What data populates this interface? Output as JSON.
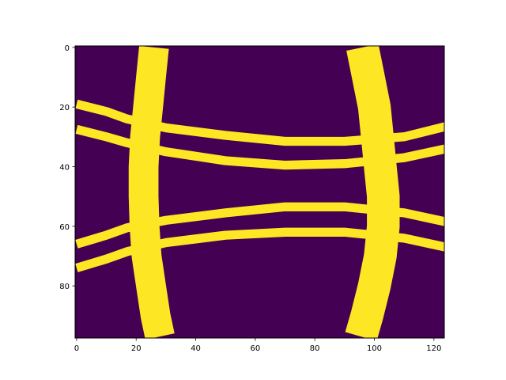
{
  "chart_data": {
    "type": "heatmap",
    "title": "",
    "xlabel": "",
    "ylabel": "",
    "image_shape": [
      98,
      124
    ],
    "xlim": [
      -0.5,
      123.5
    ],
    "ylim": [
      97.5,
      -0.5
    ],
    "x_ticks": [
      0,
      20,
      40,
      60,
      80,
      100,
      120
    ],
    "y_ticks": [
      0,
      20,
      40,
      60,
      80
    ],
    "x_tick_labels": [
      "0",
      "20",
      "40",
      "60",
      "80",
      "100",
      "120"
    ],
    "y_tick_labels": [
      "0",
      "20",
      "40",
      "60",
      "80"
    ],
    "colormap": "viridis",
    "value_range": [
      0,
      1
    ],
    "colors": {
      "background": "#440154",
      "foreground": "#fde725"
    },
    "grid": false,
    "legend": "none",
    "bands": [
      {
        "name": "left vertical band",
        "orientation": "vertical",
        "center_points": [
          [
            26,
            0
          ],
          [
            25,
            10
          ],
          [
            24,
            20
          ],
          [
            23,
            30
          ],
          [
            22.5,
            40
          ],
          [
            22.5,
            50
          ],
          [
            22.8,
            60
          ],
          [
            23.5,
            70
          ],
          [
            25,
            80
          ],
          [
            26.5,
            90
          ],
          [
            28,
            97
          ]
        ],
        "width": 10
      },
      {
        "name": "right vertical band",
        "orientation": "vertical",
        "center_points": [
          [
            96,
            0
          ],
          [
            98,
            10
          ],
          [
            100,
            20
          ],
          [
            101,
            30
          ],
          [
            102,
            40
          ],
          [
            103,
            50
          ],
          [
            103,
            60
          ],
          [
            102,
            70
          ],
          [
            100,
            80
          ],
          [
            97.5,
            90
          ],
          [
            95.5,
            97
          ]
        ],
        "width": 11
      },
      {
        "name": "upper horizontal band 1",
        "orientation": "horizontal",
        "center_points": [
          [
            0,
            19
          ],
          [
            10,
            21.5
          ],
          [
            17,
            24
          ],
          [
            30,
            27
          ],
          [
            50,
            29.5
          ],
          [
            70,
            31.5
          ],
          [
            90,
            31.5
          ],
          [
            110,
            30
          ],
          [
            124,
            26.5
          ]
        ],
        "width": 3
      },
      {
        "name": "upper horizontal band 2",
        "orientation": "horizontal",
        "center_points": [
          [
            0,
            27.5
          ],
          [
            10,
            30
          ],
          [
            17,
            32
          ],
          [
            30,
            35
          ],
          [
            50,
            38
          ],
          [
            70,
            39.5
          ],
          [
            90,
            39
          ],
          [
            110,
            37
          ],
          [
            124,
            34
          ]
        ],
        "width": 3
      },
      {
        "name": "lower horizontal band 1",
        "orientation": "horizontal",
        "center_points": [
          [
            0,
            66
          ],
          [
            10,
            63
          ],
          [
            17,
            60.5
          ],
          [
            30,
            58
          ],
          [
            50,
            55.5
          ],
          [
            70,
            53.5
          ],
          [
            90,
            53.5
          ],
          [
            110,
            55.5
          ],
          [
            124,
            58.5
          ]
        ],
        "width": 3
      },
      {
        "name": "lower horizontal band 2",
        "orientation": "horizontal",
        "center_points": [
          [
            0,
            74
          ],
          [
            10,
            71
          ],
          [
            17,
            68.5
          ],
          [
            30,
            65.5
          ],
          [
            50,
            63
          ],
          [
            70,
            62
          ],
          [
            90,
            62
          ],
          [
            110,
            64
          ],
          [
            124,
            67
          ]
        ],
        "width": 3
      }
    ]
  }
}
